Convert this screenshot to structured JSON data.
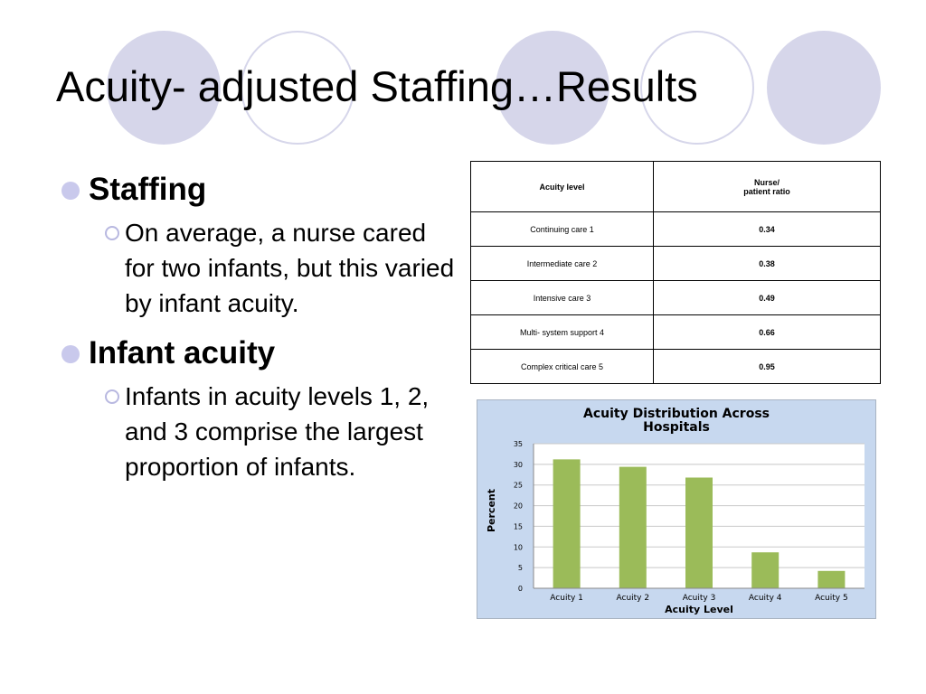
{
  "slide": {
    "title": "Acuity- adjusted Staffing…Results"
  },
  "bullets": [
    {
      "heading": "Staffing",
      "sub": "On average, a nurse cared for two infants, but this varied by infant acuity."
    },
    {
      "heading": "Infant acuity",
      "sub": "Infants in acuity levels 1, 2, and 3 comprise the largest proportion of infants."
    }
  ],
  "table": {
    "headers": [
      "Acuity level",
      "Nurse/",
      "patient ratio"
    ],
    "rows": [
      {
        "level": "Continuing care 1",
        "ratio": "0.34"
      },
      {
        "level": "Intermediate care 2",
        "ratio": "0.38"
      },
      {
        "level": "Intensive care 3",
        "ratio": "0.49"
      },
      {
        "level": "Multi- system support 4",
        "ratio": "0.66"
      },
      {
        "level": "Complex critical care 5",
        "ratio": "0.95"
      }
    ]
  },
  "colors": {
    "decoration": "#d6d6ea",
    "chart_background": "#c7d8ef",
    "bar": "#9bbb59",
    "bullet": "#c9c9ec"
  },
  "chart_data": {
    "type": "bar",
    "title_lines": [
      "Acuity Distribution Across",
      "Hospitals"
    ],
    "categories": [
      "Acuity 1",
      "Acuity 2",
      "Acuity 3",
      "Acuity 4",
      "Acuity 5"
    ],
    "values": [
      31.2,
      29.4,
      26.8,
      8.7,
      4.2
    ],
    "xlabel": "Acuity Level",
    "ylabel": "Percent",
    "ylim": [
      0,
      35
    ],
    "yticks": [
      0,
      5,
      10,
      15,
      20,
      25,
      30,
      35
    ],
    "grid": true,
    "legend": "none"
  }
}
